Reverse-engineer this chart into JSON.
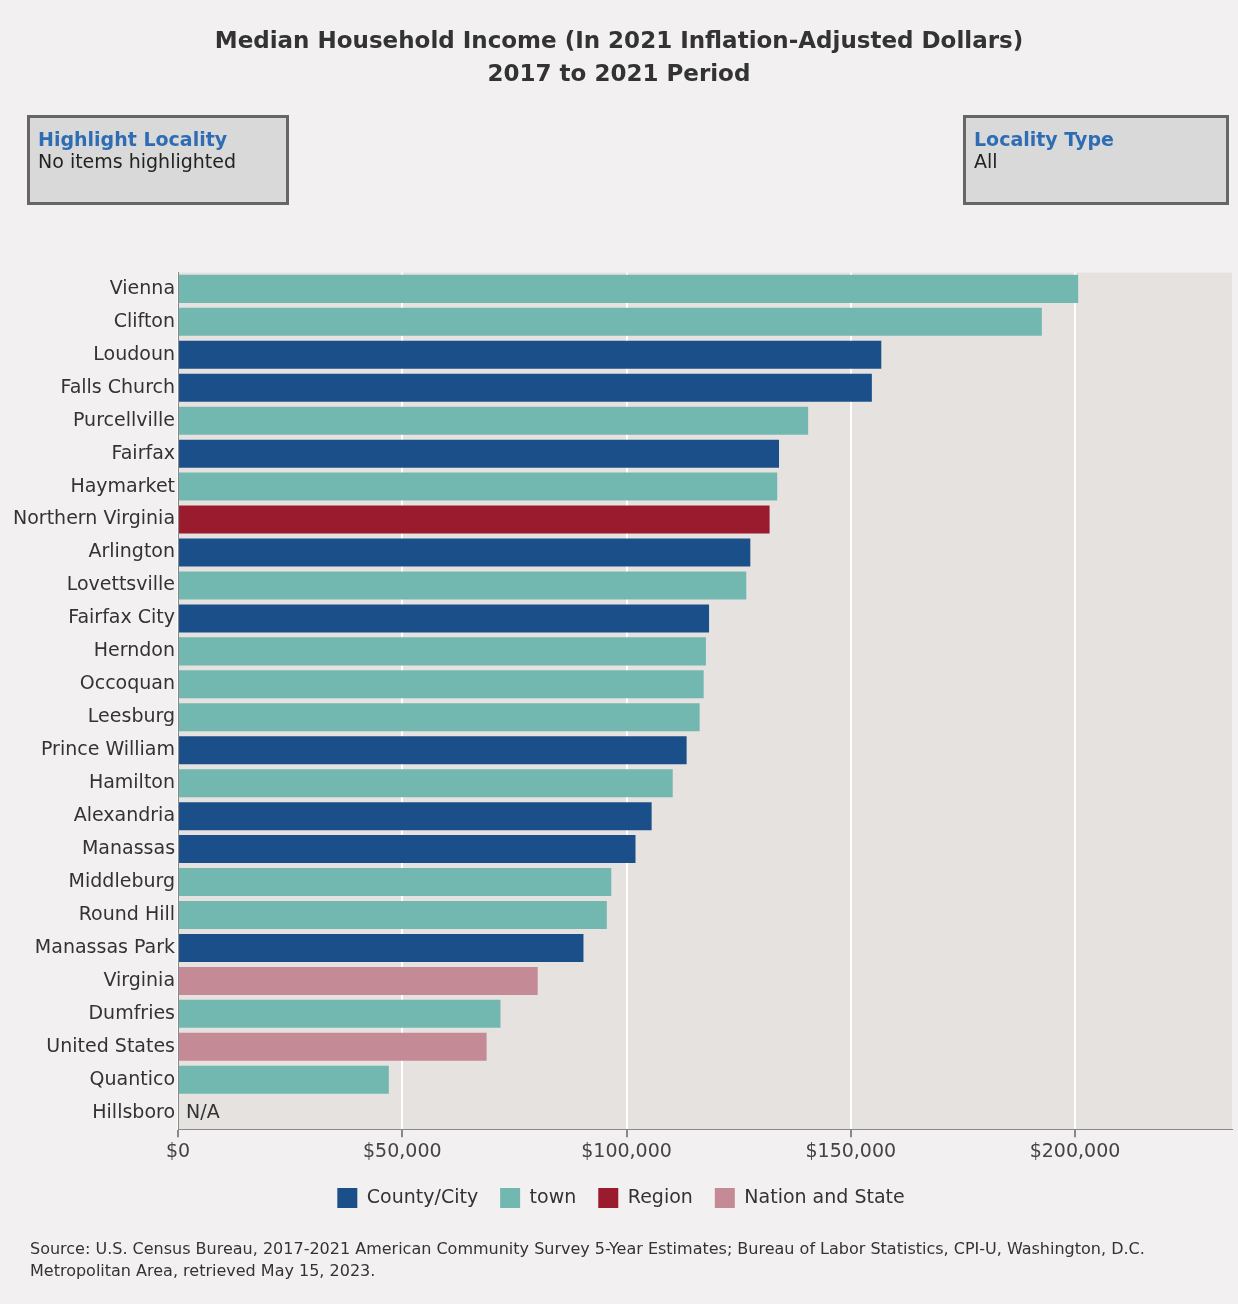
{
  "chart_data": {
    "type": "bar",
    "title": "Median Household Income (In 2021 Inflation-Adjusted Dollars)",
    "subtitle": "2017 to 2021 Period",
    "orientation": "horizontal",
    "stacked": true,
    "categories": [
      "Vienna",
      "Clifton",
      "Loudoun",
      "Falls Church",
      "Purcellville",
      "Fairfax",
      "Haymarket",
      "Northern Virginia",
      "Arlington",
      "Lovettsville",
      "Fairfax City",
      "Herndon",
      "Occoquan",
      "Leesburg",
      "Prince William",
      "Hamilton",
      "Alexandria",
      "Manassas",
      "Middleburg",
      "Round Hill",
      "Manassas Park",
      "Virginia",
      "Dumfries",
      "United States",
      "Quantico",
      "Hillsboro"
    ],
    "series": [
      {
        "name": "County/City",
        "color": "#1b4f8a",
        "values": [
          null,
          null,
          156800,
          154700,
          null,
          134000,
          null,
          null,
          127600,
          null,
          118400,
          null,
          null,
          null,
          113400,
          null,
          105600,
          102000,
          null,
          null,
          90400,
          null,
          null,
          null,
          null,
          null
        ]
      },
      {
        "name": "town",
        "color": "#72b8b0",
        "values": [
          200700,
          192600,
          null,
          null,
          140500,
          null,
          133600,
          null,
          null,
          126700,
          null,
          117700,
          117200,
          116300,
          null,
          110300,
          null,
          null,
          96600,
          95600,
          null,
          null,
          71900,
          null,
          47000,
          null
        ]
      },
      {
        "name": "Region",
        "color": "#9b1b2e",
        "values": [
          null,
          null,
          null,
          null,
          null,
          null,
          null,
          131900,
          null,
          null,
          null,
          null,
          null,
          null,
          null,
          null,
          null,
          null,
          null,
          null,
          null,
          null,
          null,
          null,
          null,
          null
        ]
      },
      {
        "name": "Nation and State",
        "color": "#c48a96",
        "values": [
          null,
          null,
          null,
          null,
          null,
          null,
          null,
          null,
          null,
          null,
          null,
          null,
          null,
          null,
          null,
          null,
          null,
          null,
          null,
          null,
          null,
          80200,
          null,
          68800,
          null,
          null
        ]
      }
    ],
    "xlim": [
      0,
      235000
    ],
    "xticks": [
      {
        "value": 0,
        "label": "$0"
      },
      {
        "value": 50000,
        "label": "$50,000"
      },
      {
        "value": 100000,
        "label": "$100,000"
      },
      {
        "value": 150000,
        "label": "$150,000"
      },
      {
        "value": 200000,
        "label": "$200,000"
      }
    ],
    "grid": "x",
    "legend": "bottom",
    "annotations": [
      "Highlight Locality",
      "No items highlighted",
      "Locality Type",
      "All",
      "Source: U.S. Census Bureau, 2017-2021 American Community Survey 5-Year Estimates; Bureau of Labor Statistics, CPI-U, Washington, D.C. Metropolitan Area, retrieved May 15, 2023.",
      "N/A"
    ]
  }
}
